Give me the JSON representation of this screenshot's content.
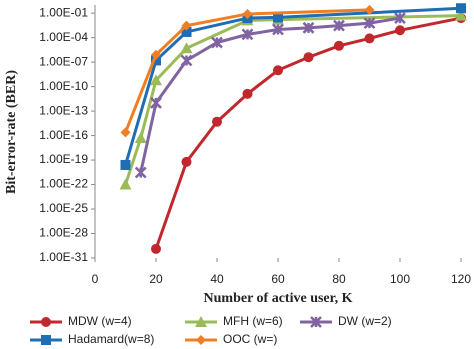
{
  "chart_data": {
    "type": "line",
    "x_label": "Number of active user, K",
    "y_label": "Bit-error-rate (BER)",
    "log_y": true,
    "grid": false,
    "legend": "bottom",
    "xlim": [
      0,
      120
    ],
    "xticks": [
      0,
      20,
      40,
      60,
      80,
      100,
      120
    ],
    "ylim": [
      1e-31,
      1
    ],
    "yticks": [
      {
        "value": 0.1,
        "label": "1.00E-01"
      },
      {
        "value": 0.0001,
        "label": "1.00E-04"
      },
      {
        "value": 1e-07,
        "label": "1.00E-07"
      },
      {
        "value": 1e-10,
        "label": "1.00E-10"
      },
      {
        "value": 1e-13,
        "label": "1.00E-13"
      },
      {
        "value": 1e-16,
        "label": "1.00E-16"
      },
      {
        "value": 1e-19,
        "label": "1.00E-19"
      },
      {
        "value": 1e-22,
        "label": "1.00E-22"
      },
      {
        "value": 1e-25,
        "label": "1.00E-25"
      },
      {
        "value": 1e-28,
        "label": "1.00E-28"
      },
      {
        "value": 1e-31,
        "label": "1.00E-31"
      }
    ],
    "series": [
      {
        "name": "MDW (w=4)",
        "color": "#c0282d",
        "marker": "circle",
        "x": [
          20,
          30,
          40,
          50,
          60,
          70,
          80,
          90,
          100,
          120
        ],
        "values": [
          1.3e-30,
          6e-20,
          5e-15,
          1.3e-11,
          1e-08,
          4e-07,
          1e-05,
          8e-05,
          0.0008,
          0.025
        ]
      },
      {
        "name": "MFH (w=6)",
        "color": "#9bbb59",
        "marker": "triangle",
        "x": [
          10,
          15,
          20,
          30,
          50,
          60,
          120
        ],
        "values": [
          1e-22,
          5e-17,
          6e-10,
          5e-06,
          0.013,
          0.016,
          0.05
        ]
      },
      {
        "name": "DW (w=2)",
        "color": "#8064a2",
        "marker": "star",
        "x": [
          15,
          20,
          30,
          40,
          50,
          60,
          70,
          80,
          90,
          100
        ],
        "values": [
          3e-21,
          1e-12,
          1.6e-07,
          2.5e-05,
          0.00025,
          0.001,
          0.0016,
          0.003,
          0.006,
          0.025
        ]
      },
      {
        "name": "Hadamard(w=8)",
        "color": "#1f6db5",
        "marker": "square",
        "x": [
          10,
          20,
          30,
          50,
          60,
          120
        ],
        "values": [
          2.5e-20,
          1.6e-07,
          0.0005,
          0.025,
          0.03,
          0.4
        ]
      },
      {
        "name": "OOC (w=)",
        "color": "#f07f24",
        "marker": "diamond",
        "x": [
          10,
          20,
          30,
          50,
          90
        ],
        "values": [
          2.5e-16,
          8e-07,
          0.003,
          0.08,
          0.25
        ]
      }
    ]
  }
}
